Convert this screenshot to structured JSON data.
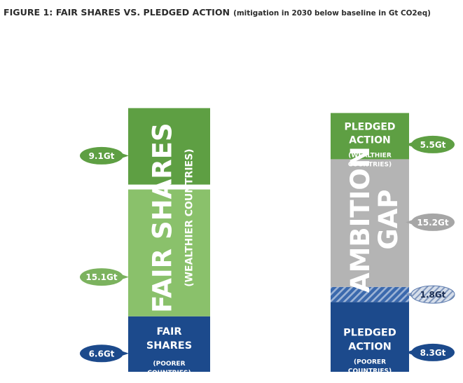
{
  "title": {
    "main": "FIGURE 1: FAIR SHARES VS. PLEDGED ACTION",
    "subtitle": "(mitigation in 2030 below baseline in Gt CO2eq)"
  },
  "chart_data": {
    "type": "bar",
    "stacked": true,
    "unit": "Gt",
    "bars": [
      {
        "segments": [
          {
            "value": 6.6,
            "label": "6.6Gt",
            "color": "#1c4a8c",
            "pattern": "solid"
          },
          {
            "value": 15.1,
            "label": "15.1Gt",
            "color": "#8ac16b",
            "pattern": "solid"
          },
          {
            "value": 9.1,
            "label": "9.1Gt",
            "color": "#5e9f43",
            "pattern": "solid"
          }
        ]
      },
      {
        "segments": [
          {
            "value": 8.3,
            "label": "8.3Gt",
            "color": "#1c4a8c",
            "pattern": "solid"
          },
          {
            "value": 1.8,
            "label": "1.8Gt",
            "color": "#3b69ad",
            "pattern": "hatched"
          },
          {
            "value": 15.2,
            "label": "15.2Gt",
            "color": "#b4b4b4",
            "pattern": "solid"
          },
          {
            "value": 5.5,
            "label": "5.5Gt",
            "color": "#5e9f43",
            "pattern": "solid"
          }
        ]
      }
    ],
    "annotations": {
      "fair_shares_big": [
        "FAIR SHARES",
        "(WEALTHIER COUNTRIES)"
      ],
      "fair_shares_poorer": [
        "FAIR",
        "SHARES",
        "(POORER",
        "COUNTRIES)"
      ],
      "pledged_wealthier": [
        "PLEDGED",
        "ACTION",
        "(WEALTHIER",
        "COUNTRIES)"
      ],
      "ambition_gap": [
        "AMBITION",
        "GAP"
      ],
      "pledged_poorer": [
        "PLEDGED",
        "ACTION",
        "(POORER",
        "COUNTRIES)"
      ]
    },
    "grid": false,
    "legend": "none"
  }
}
